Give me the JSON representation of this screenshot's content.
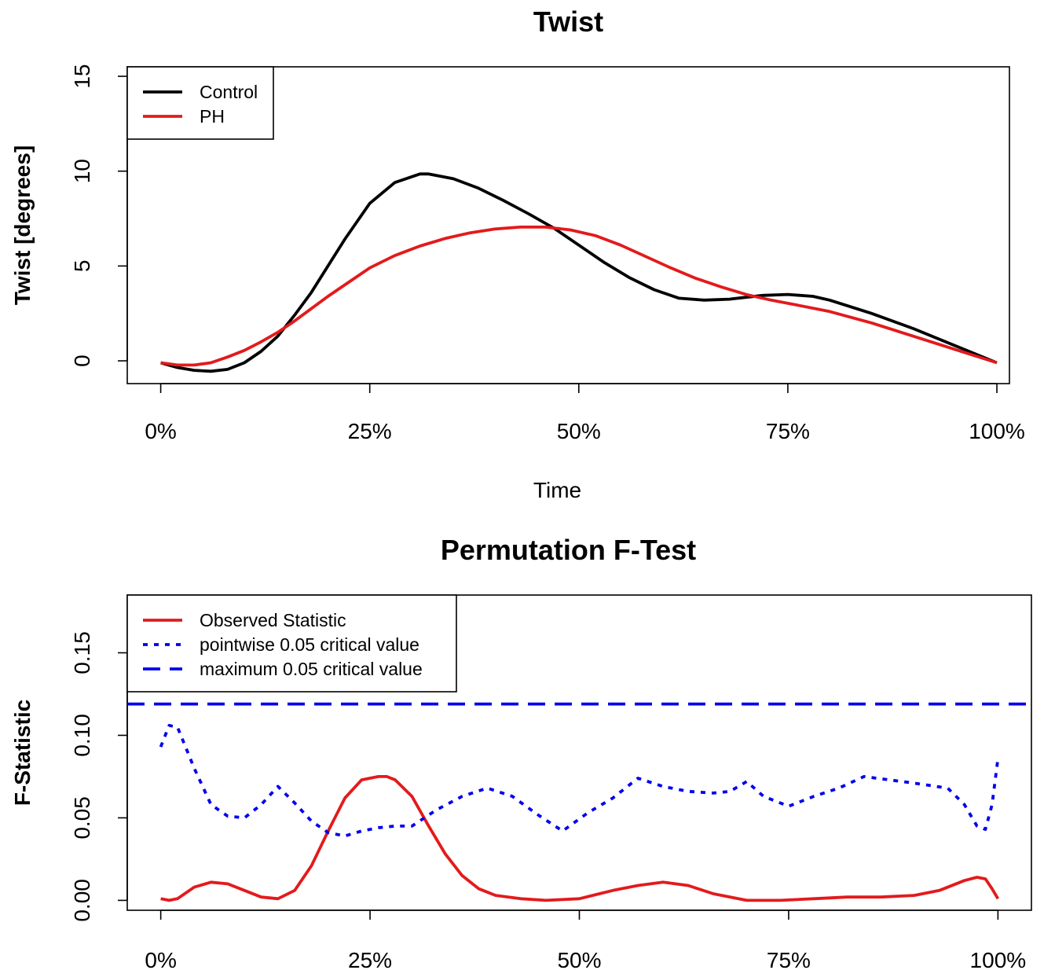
{
  "chart_data": [
    {
      "type": "line",
      "title": "Twist",
      "xlabel": "Time",
      "ylabel": "Twist [degrees]",
      "x_tick_labels": [
        "0%",
        "25%",
        "50%",
        "75%",
        "100%"
      ],
      "x_ticks": [
        0,
        25,
        50,
        75,
        100
      ],
      "y_ticks": [
        0,
        5,
        10,
        15
      ],
      "y_tick_labels": [
        "0",
        "5",
        "10",
        "15"
      ],
      "xlim": [
        -4,
        101.5
      ],
      "ylim": [
        -1.2,
        15.5
      ],
      "legend_position": "top-left",
      "grid": false,
      "series": [
        {
          "name": "Control",
          "color": "#000000",
          "style": "solid",
          "x": [
            0,
            2,
            4,
            6,
            8,
            10,
            12,
            14,
            16,
            18,
            20,
            22,
            25,
            28,
            31,
            32,
            35,
            38,
            41,
            44,
            47,
            50,
            53,
            56,
            59,
            62,
            65,
            68,
            70,
            72,
            75,
            78,
            80,
            85,
            90,
            95,
            100
          ],
          "y": [
            -0.1,
            -0.35,
            -0.5,
            -0.55,
            -0.45,
            -0.1,
            0.5,
            1.3,
            2.4,
            3.6,
            5.0,
            6.4,
            8.3,
            9.4,
            9.85,
            9.85,
            9.6,
            9.1,
            8.45,
            7.75,
            7.0,
            6.1,
            5.2,
            4.4,
            3.75,
            3.3,
            3.2,
            3.25,
            3.35,
            3.45,
            3.5,
            3.4,
            3.2,
            2.5,
            1.7,
            0.8,
            -0.1
          ]
        },
        {
          "name": "PH",
          "color": "#e31a1c",
          "style": "solid",
          "x": [
            0,
            2,
            4,
            6,
            8,
            10,
            12,
            14,
            16,
            18,
            20,
            22,
            25,
            28,
            31,
            34,
            37,
            40,
            43,
            46,
            49,
            52,
            55,
            58,
            61,
            64,
            67,
            70,
            73,
            76,
            80,
            85,
            90,
            95,
            100
          ],
          "y": [
            -0.1,
            -0.22,
            -0.22,
            -0.1,
            0.2,
            0.55,
            1.0,
            1.5,
            2.1,
            2.75,
            3.4,
            4.0,
            4.9,
            5.55,
            6.05,
            6.45,
            6.75,
            6.95,
            7.05,
            7.05,
            6.9,
            6.6,
            6.1,
            5.5,
            4.9,
            4.35,
            3.9,
            3.5,
            3.2,
            2.95,
            2.6,
            2.0,
            1.3,
            0.6,
            -0.1
          ]
        }
      ]
    },
    {
      "type": "line",
      "title": "Permutation F-Test",
      "xlabel": "",
      "ylabel": "F-Statistic",
      "x_tick_labels": [
        "0%",
        "25%",
        "50%",
        "75%",
        "100%"
      ],
      "x_ticks": [
        0,
        25,
        50,
        75,
        100
      ],
      "y_ticks": [
        0.0,
        0.05,
        0.1,
        0.15
      ],
      "y_tick_labels": [
        "0.00",
        "0.05",
        "0.10",
        "0.15"
      ],
      "xlim": [
        -4,
        104
      ],
      "ylim": [
        -0.006,
        0.185
      ],
      "legend_position": "top-left",
      "grid": false,
      "series": [
        {
          "name": "Observed Statistic",
          "color": "#e31a1c",
          "style": "solid",
          "x": [
            0,
            1,
            2,
            4,
            6,
            8,
            10,
            12,
            14,
            16,
            18,
            20,
            22,
            24,
            26,
            27,
            28,
            30,
            32,
            34,
            36,
            38,
            40,
            43,
            46,
            50,
            54,
            57,
            60,
            63,
            66,
            70,
            74,
            78,
            82,
            86,
            90,
            93,
            96,
            97.5,
            98.5,
            99.3,
            100
          ],
          "y": [
            0.001,
            0.0,
            0.001,
            0.008,
            0.011,
            0.01,
            0.006,
            0.002,
            0.001,
            0.006,
            0.021,
            0.042,
            0.062,
            0.073,
            0.075,
            0.075,
            0.073,
            0.063,
            0.045,
            0.028,
            0.015,
            0.007,
            0.003,
            0.001,
            0.0,
            0.001,
            0.006,
            0.009,
            0.011,
            0.009,
            0.004,
            0.0,
            0.0,
            0.001,
            0.002,
            0.002,
            0.003,
            0.006,
            0.012,
            0.014,
            0.013,
            0.007,
            0.001
          ]
        },
        {
          "name": "pointwise 0.05 critical value",
          "color": "#0000ee",
          "style": "dotted",
          "x": [
            0,
            1,
            2,
            4,
            6,
            8,
            10,
            12,
            14,
            16,
            18,
            20,
            22,
            24,
            26,
            28,
            30,
            33,
            36,
            39,
            42,
            45,
            48,
            51,
            54,
            57,
            60,
            63,
            66,
            68,
            70,
            72,
            75,
            78,
            81,
            84,
            87,
            90,
            94,
            96,
            97.5,
            98.5,
            99.3,
            100
          ],
          "y": [
            0.093,
            0.106,
            0.105,
            0.08,
            0.058,
            0.051,
            0.05,
            0.058,
            0.069,
            0.059,
            0.048,
            0.041,
            0.039,
            0.042,
            0.044,
            0.045,
            0.045,
            0.055,
            0.063,
            0.068,
            0.063,
            0.052,
            0.042,
            0.053,
            0.062,
            0.074,
            0.069,
            0.066,
            0.065,
            0.066,
            0.072,
            0.063,
            0.057,
            0.063,
            0.068,
            0.075,
            0.073,
            0.071,
            0.068,
            0.058,
            0.045,
            0.043,
            0.058,
            0.086
          ]
        },
        {
          "name": "maximum 0.05 critical value",
          "color": "#0000ee",
          "style": "dashed",
          "x": [
            -4,
            104
          ],
          "y": [
            0.119,
            0.119
          ]
        }
      ]
    }
  ]
}
